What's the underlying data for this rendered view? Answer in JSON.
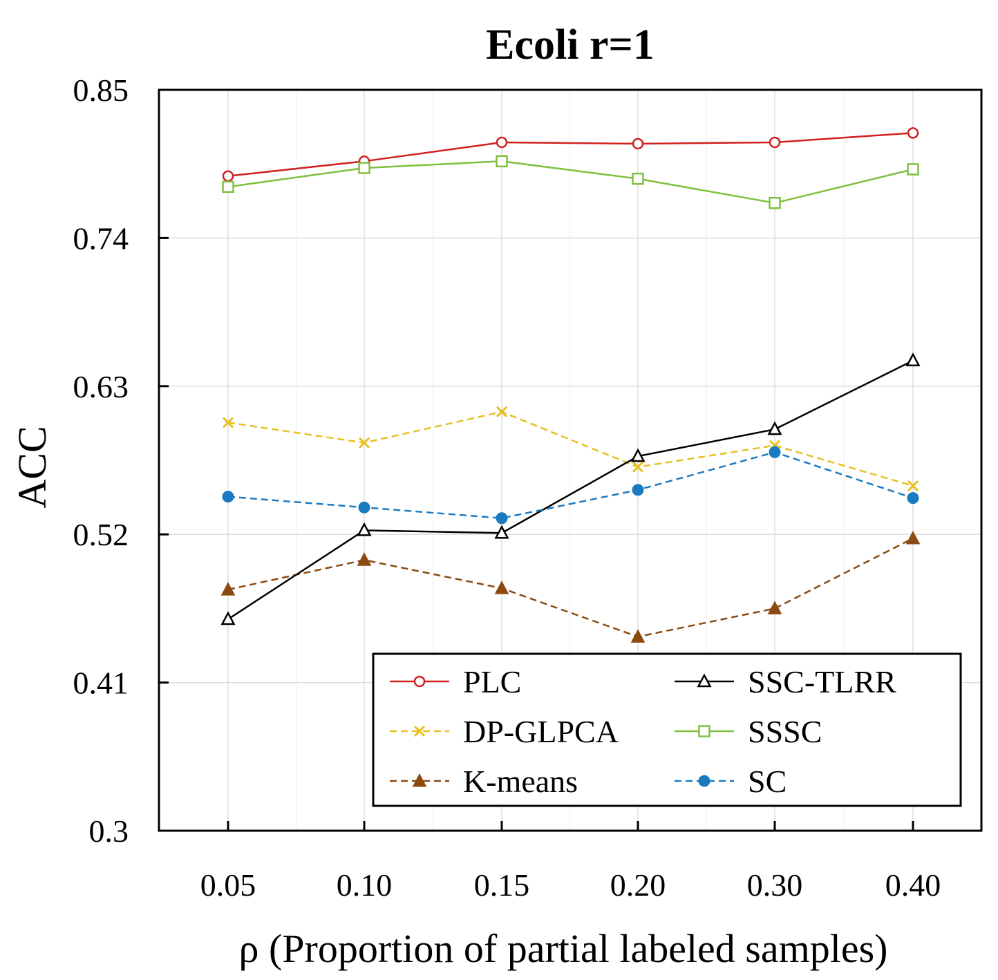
{
  "chart_data": {
    "type": "line",
    "title": "Ecoli r=1",
    "xlabel": "ρ (Proportion of partial labeled samples)",
    "ylabel": "ACC",
    "categories": [
      "0.05",
      "0.10",
      "0.15",
      "0.20",
      "0.30",
      "0.40"
    ],
    "yticks": [
      "0.85",
      "0.74",
      "0.63",
      "0.52",
      "0.41",
      "0.3"
    ],
    "ylim": [
      0.3,
      0.85
    ],
    "grid": true,
    "legend_position": "lower-right",
    "series": [
      {
        "name": "PLC",
        "color": "#d02020",
        "dash": "solid",
        "marker": "circle-open",
        "values": [
          0.786,
          0.797,
          0.811,
          0.81,
          0.811,
          0.818
        ]
      },
      {
        "name": "DP-GLPCA",
        "color": "#e8c020",
        "dash": "dashed",
        "marker": "x",
        "values": [
          0.603,
          0.588,
          0.611,
          0.57,
          0.586,
          0.556
        ]
      },
      {
        "name": "K-means",
        "color": "#8b4a10",
        "dash": "dashed",
        "marker": "triangle-filled",
        "values": [
          0.479,
          0.501,
          0.48,
          0.444,
          0.465,
          0.517
        ]
      },
      {
        "name": "SSC-TLRR",
        "color": "#000000",
        "dash": "solid",
        "marker": "triangle-open",
        "values": [
          0.457,
          0.523,
          0.521,
          0.578,
          0.598,
          0.649
        ]
      },
      {
        "name": "SSSC",
        "color": "#80c040",
        "dash": "solid",
        "marker": "square-open",
        "values": [
          0.778,
          0.792,
          0.797,
          0.784,
          0.766,
          0.791
        ]
      },
      {
        "name": "SC",
        "color": "#1a7ac0",
        "dash": "dashed",
        "marker": "circle-filled",
        "values": [
          0.548,
          0.54,
          0.532,
          0.553,
          0.581,
          0.547
        ]
      }
    ]
  }
}
